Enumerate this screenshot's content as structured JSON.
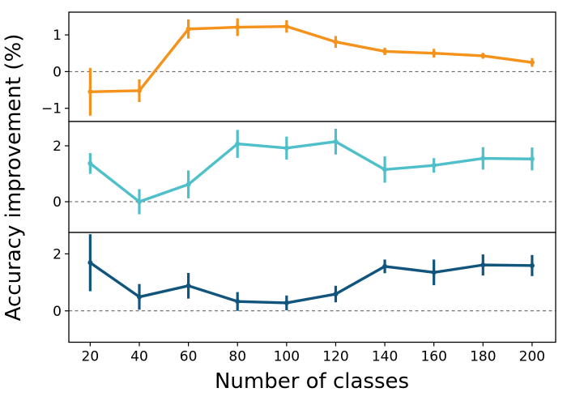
{
  "chart_data": {
    "type": "line",
    "title": "",
    "xlabel": "Number of classes",
    "ylabel": "Accuracy improvement (%)",
    "x": [
      20,
      40,
      60,
      80,
      100,
      120,
      140,
      160,
      180,
      200
    ],
    "xlim": [
      11.3,
      209.6
    ],
    "xticks": [
      20,
      40,
      60,
      80,
      100,
      120,
      140,
      160,
      180,
      200
    ],
    "grid": false,
    "legend_position": "none",
    "zero_line": {
      "value": 0,
      "style": "dashed",
      "color": "#555555"
    },
    "subplots": [
      {
        "name": "top-series",
        "color": "#F5921B",
        "ylim": [
          -1.36,
          1.62
        ],
        "yticks": [
          1,
          0,
          -1
        ],
        "series": [
          {
            "name": "orange",
            "y": [
              -0.55,
              -0.52,
              1.16,
              1.21,
              1.23,
              0.81,
              0.55,
              0.5,
              0.43,
              0.25
            ],
            "yerr": [
              0.65,
              0.31,
              0.26,
              0.24,
              0.17,
              0.16,
              0.1,
              0.12,
              0.08,
              0.12
            ]
          }
        ]
      },
      {
        "name": "middle-series",
        "color": "#4FBFC9",
        "ylim": [
          -1.1,
          2.87
        ],
        "yticks": [
          2,
          0
        ],
        "series": [
          {
            "name": "cyan",
            "y": [
              1.37,
              0.0,
              0.62,
              2.07,
              1.92,
              2.15,
              1.15,
              1.3,
              1.55,
              1.53
            ],
            "yerr": [
              0.37,
              0.45,
              0.5,
              0.5,
              0.41,
              0.46,
              0.47,
              0.26,
              0.4,
              0.41
            ]
          }
        ]
      },
      {
        "name": "bottom-series",
        "color": "#11557C",
        "ylim": [
          -1.1,
          2.75
        ],
        "yticks": [
          2,
          0
        ],
        "series": [
          {
            "name": "dark-blue",
            "y": [
              1.69,
              0.49,
              0.88,
              0.33,
              0.28,
              0.59,
              1.56,
              1.35,
              1.61,
              1.59
            ],
            "yerr": [
              1.0,
              0.45,
              0.45,
              0.33,
              0.26,
              0.29,
              0.24,
              0.45,
              0.37,
              0.37
            ]
          }
        ]
      }
    ]
  }
}
